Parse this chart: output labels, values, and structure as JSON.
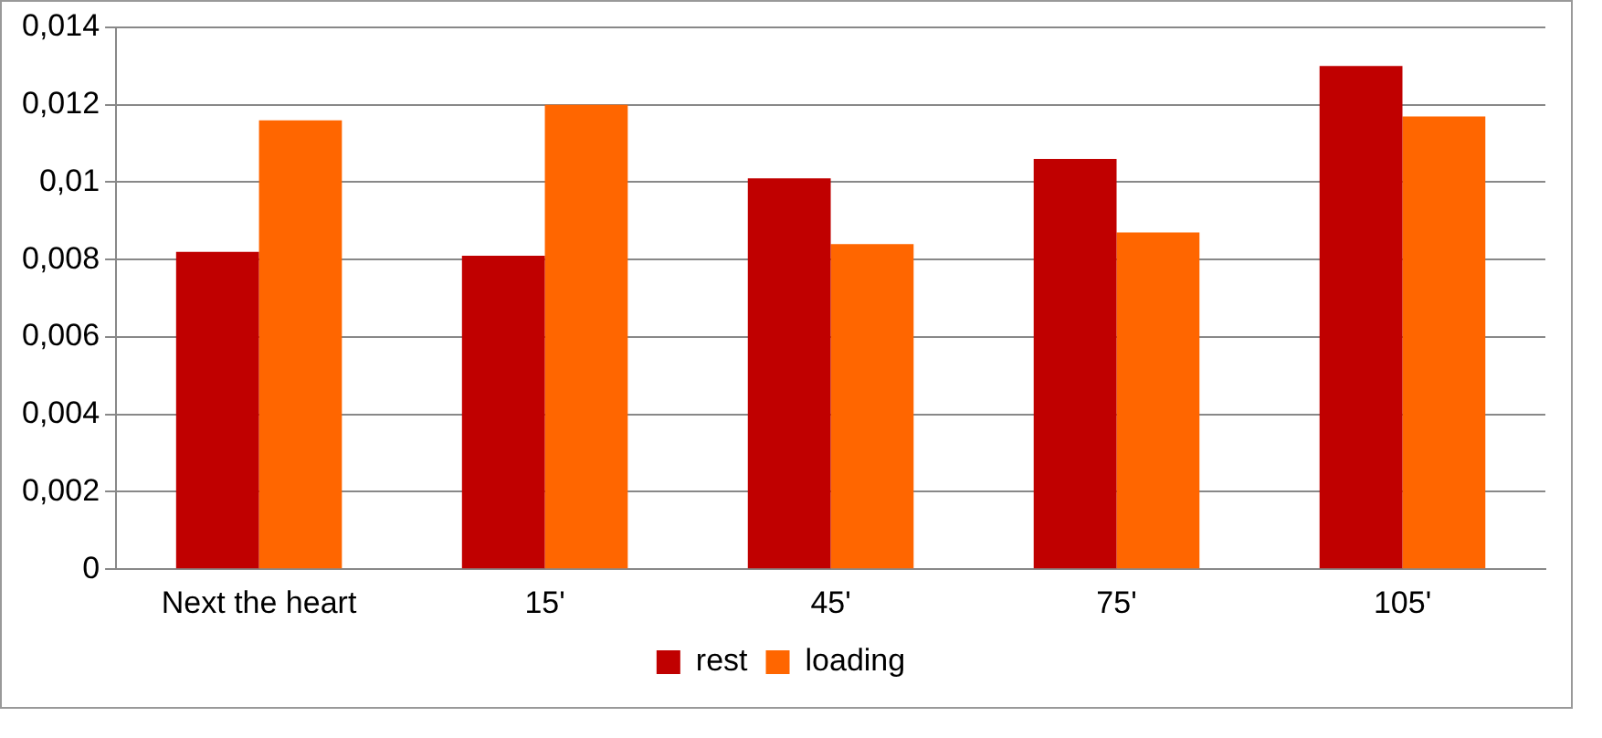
{
  "chart_data": {
    "type": "bar",
    "categories": [
      "Next the heart",
      "15'",
      "45'",
      "75'",
      "105'"
    ],
    "series": [
      {
        "name": "rest",
        "color": "#c00000",
        "values": [
          0.0082,
          0.0081,
          0.0101,
          0.0106,
          0.013
        ]
      },
      {
        "name": "loading",
        "color": "#ff6600",
        "values": [
          0.0116,
          0.012,
          0.0084,
          0.0087,
          0.0117
        ]
      }
    ],
    "ylim": [
      0,
      0.014
    ],
    "yticks": [
      0,
      {
        "value": 0.002,
        "label": "0,002"
      },
      {
        "value": 0.004,
        "label": "0,004"
      },
      {
        "value": 0.006,
        "label": "0,006"
      },
      {
        "value": 0.008,
        "label": "0,008"
      },
      {
        "value": 0.01,
        "label": "0,01"
      },
      {
        "value": 0.012,
        "label": "0,012"
      },
      {
        "value": 0.014,
        "label": "0,014"
      }
    ],
    "grid": "y",
    "legend": "bottom"
  }
}
